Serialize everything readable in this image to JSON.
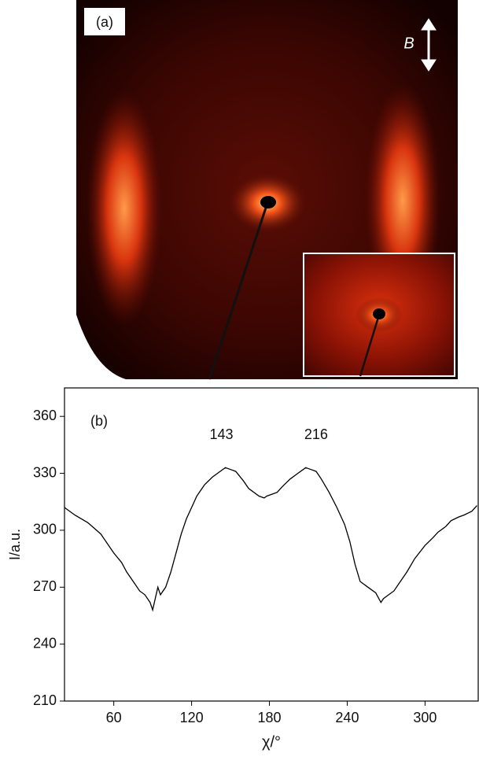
{
  "image_panel": {
    "label": "(a)",
    "field_label": "B"
  },
  "chart_data": {
    "type": "line",
    "panel_label": "(b)",
    "xlabel": "χ/°",
    "ylabel": "I/a.u.",
    "x": [
      22,
      30,
      40,
      50,
      56,
      60,
      66,
      70,
      76,
      80,
      84,
      88,
      90,
      92,
      94,
      96,
      100,
      104,
      108,
      112,
      116,
      120,
      124,
      130,
      136,
      142,
      146,
      150,
      154,
      160,
      164,
      168,
      172,
      176,
      178,
      182,
      186,
      190,
      196,
      202,
      208,
      212,
      216,
      220,
      226,
      232,
      238,
      242,
      246,
      250,
      256,
      262,
      266,
      268,
      272,
      276,
      280,
      286,
      292,
      300,
      306,
      310,
      316,
      320,
      326,
      330,
      336,
      340
    ],
    "values": [
      312,
      308,
      304,
      298,
      292,
      288,
      283,
      278,
      272,
      268,
      266,
      262,
      258,
      264,
      270,
      266,
      270,
      278,
      288,
      298,
      306,
      312,
      318,
      324,
      328,
      331,
      333,
      332,
      331,
      326,
      322,
      320,
      318,
      317,
      318,
      319,
      320,
      323,
      327,
      330,
      333,
      332,
      331,
      327,
      320,
      312,
      303,
      294,
      282,
      273,
      270,
      267,
      262,
      264,
      266,
      268,
      272,
      278,
      285,
      292,
      296,
      299,
      302,
      305,
      307,
      308,
      310,
      313
    ],
    "color": "#000000",
    "peak_labels": [
      143,
      216
    ],
    "xlim": [
      22,
      341
    ],
    "ylim": [
      210,
      375
    ],
    "xticks": [
      60,
      120,
      180,
      240,
      300
    ],
    "yticks": [
      210,
      240,
      270,
      300,
      330,
      360
    ]
  }
}
